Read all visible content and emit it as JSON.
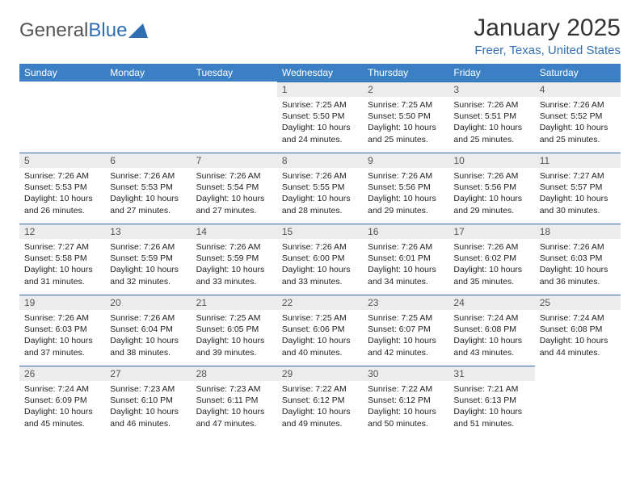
{
  "brand": {
    "part1": "General",
    "part2": "Blue"
  },
  "title": "January 2025",
  "location": "Freer, Texas, United States",
  "colors": {
    "headerBg": "#3b7fc4",
    "headerText": "#ffffff",
    "accent": "#2f6fb1",
    "dayNumBg": "#ececec",
    "bodyText": "#222222",
    "pageBg": "#ffffff"
  },
  "weekdays": [
    "Sunday",
    "Monday",
    "Tuesday",
    "Wednesday",
    "Thursday",
    "Friday",
    "Saturday"
  ],
  "grid": [
    [
      null,
      null,
      null,
      {
        "n": "1",
        "sr": "7:25 AM",
        "ss": "5:50 PM",
        "dl": "10 hours and 24 minutes."
      },
      {
        "n": "2",
        "sr": "7:25 AM",
        "ss": "5:50 PM",
        "dl": "10 hours and 25 minutes."
      },
      {
        "n": "3",
        "sr": "7:26 AM",
        "ss": "5:51 PM",
        "dl": "10 hours and 25 minutes."
      },
      {
        "n": "4",
        "sr": "7:26 AM",
        "ss": "5:52 PM",
        "dl": "10 hours and 25 minutes."
      }
    ],
    [
      {
        "n": "5",
        "sr": "7:26 AM",
        "ss": "5:53 PM",
        "dl": "10 hours and 26 minutes."
      },
      {
        "n": "6",
        "sr": "7:26 AM",
        "ss": "5:53 PM",
        "dl": "10 hours and 27 minutes."
      },
      {
        "n": "7",
        "sr": "7:26 AM",
        "ss": "5:54 PM",
        "dl": "10 hours and 27 minutes."
      },
      {
        "n": "8",
        "sr": "7:26 AM",
        "ss": "5:55 PM",
        "dl": "10 hours and 28 minutes."
      },
      {
        "n": "9",
        "sr": "7:26 AM",
        "ss": "5:56 PM",
        "dl": "10 hours and 29 minutes."
      },
      {
        "n": "10",
        "sr": "7:26 AM",
        "ss": "5:56 PM",
        "dl": "10 hours and 29 minutes."
      },
      {
        "n": "11",
        "sr": "7:27 AM",
        "ss": "5:57 PM",
        "dl": "10 hours and 30 minutes."
      }
    ],
    [
      {
        "n": "12",
        "sr": "7:27 AM",
        "ss": "5:58 PM",
        "dl": "10 hours and 31 minutes."
      },
      {
        "n": "13",
        "sr": "7:26 AM",
        "ss": "5:59 PM",
        "dl": "10 hours and 32 minutes."
      },
      {
        "n": "14",
        "sr": "7:26 AM",
        "ss": "5:59 PM",
        "dl": "10 hours and 33 minutes."
      },
      {
        "n": "15",
        "sr": "7:26 AM",
        "ss": "6:00 PM",
        "dl": "10 hours and 33 minutes."
      },
      {
        "n": "16",
        "sr": "7:26 AM",
        "ss": "6:01 PM",
        "dl": "10 hours and 34 minutes."
      },
      {
        "n": "17",
        "sr": "7:26 AM",
        "ss": "6:02 PM",
        "dl": "10 hours and 35 minutes."
      },
      {
        "n": "18",
        "sr": "7:26 AM",
        "ss": "6:03 PM",
        "dl": "10 hours and 36 minutes."
      }
    ],
    [
      {
        "n": "19",
        "sr": "7:26 AM",
        "ss": "6:03 PM",
        "dl": "10 hours and 37 minutes."
      },
      {
        "n": "20",
        "sr": "7:26 AM",
        "ss": "6:04 PM",
        "dl": "10 hours and 38 minutes."
      },
      {
        "n": "21",
        "sr": "7:25 AM",
        "ss": "6:05 PM",
        "dl": "10 hours and 39 minutes."
      },
      {
        "n": "22",
        "sr": "7:25 AM",
        "ss": "6:06 PM",
        "dl": "10 hours and 40 minutes."
      },
      {
        "n": "23",
        "sr": "7:25 AM",
        "ss": "6:07 PM",
        "dl": "10 hours and 42 minutes."
      },
      {
        "n": "24",
        "sr": "7:24 AM",
        "ss": "6:08 PM",
        "dl": "10 hours and 43 minutes."
      },
      {
        "n": "25",
        "sr": "7:24 AM",
        "ss": "6:08 PM",
        "dl": "10 hours and 44 minutes."
      }
    ],
    [
      {
        "n": "26",
        "sr": "7:24 AM",
        "ss": "6:09 PM",
        "dl": "10 hours and 45 minutes."
      },
      {
        "n": "27",
        "sr": "7:23 AM",
        "ss": "6:10 PM",
        "dl": "10 hours and 46 minutes."
      },
      {
        "n": "28",
        "sr": "7:23 AM",
        "ss": "6:11 PM",
        "dl": "10 hours and 47 minutes."
      },
      {
        "n": "29",
        "sr": "7:22 AM",
        "ss": "6:12 PM",
        "dl": "10 hours and 49 minutes."
      },
      {
        "n": "30",
        "sr": "7:22 AM",
        "ss": "6:12 PM",
        "dl": "10 hours and 50 minutes."
      },
      {
        "n": "31",
        "sr": "7:21 AM",
        "ss": "6:13 PM",
        "dl": "10 hours and 51 minutes."
      },
      null
    ]
  ],
  "labels": {
    "sunrise": "Sunrise:",
    "sunset": "Sunset:",
    "daylight": "Daylight:"
  }
}
